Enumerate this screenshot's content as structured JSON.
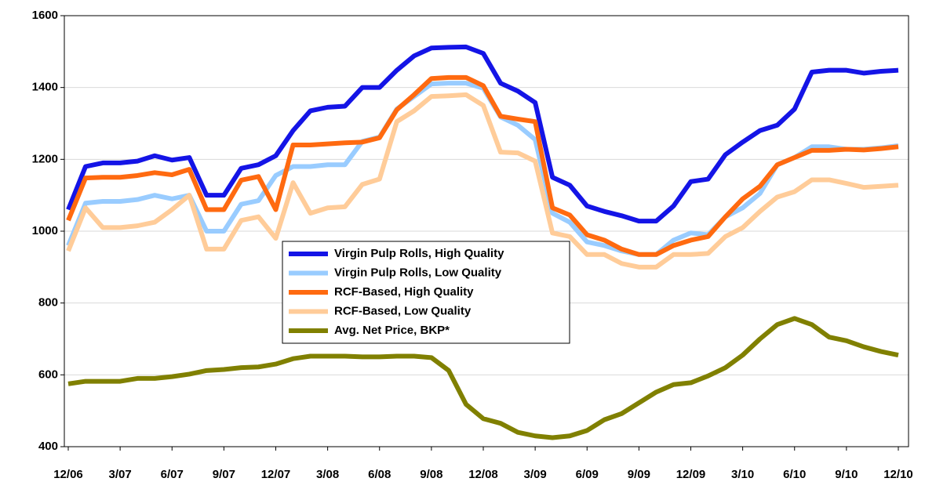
{
  "chart_data": {
    "type": "line",
    "categories": [
      "12/06",
      null,
      null,
      "3/07",
      null,
      null,
      "6/07",
      null,
      null,
      "9/07",
      null,
      null,
      "12/07",
      null,
      null,
      "3/08",
      null,
      null,
      "6/08",
      null,
      null,
      "9/08",
      null,
      null,
      "12/08",
      null,
      null,
      "3/09",
      null,
      null,
      "6/09",
      null,
      null,
      "9/09",
      null,
      null,
      "12/09",
      null,
      null,
      "3/10",
      null,
      null,
      "6/10",
      null,
      null,
      "9/10",
      null,
      null,
      "12/10"
    ],
    "series": [
      {
        "name": "Virgin Pulp Rolls, High Quality",
        "color": "#1414e6",
        "values": [
          1060,
          1180,
          1190,
          1190,
          1195,
          1210,
          1198,
          1205,
          1100,
          1100,
          1175,
          1185,
          1210,
          1280,
          1335,
          1345,
          1348,
          1400,
          1400,
          1448,
          1488,
          1510,
          1512,
          1513,
          1495,
          1412,
          1390,
          1358,
          1150,
          1128,
          1070,
          1055,
          1043,
          1028,
          1028,
          1070,
          1138,
          1145,
          1213,
          1248,
          1280,
          1295,
          1340,
          1443,
          1448,
          1448,
          1440,
          1445,
          1448
        ]
      },
      {
        "name": "Virgin Pulp Rolls, Low Quality",
        "color": "#99ccff",
        "values": [
          960,
          1078,
          1083,
          1083,
          1088,
          1100,
          1090,
          1100,
          1000,
          1000,
          1075,
          1085,
          1155,
          1180,
          1180,
          1185,
          1185,
          1250,
          1262,
          1340,
          1375,
          1410,
          1412,
          1412,
          1398,
          1318,
          1295,
          1255,
          1050,
          1025,
          970,
          960,
          945,
          935,
          935,
          975,
          995,
          990,
          1040,
          1065,
          1105,
          1185,
          1205,
          1235,
          1235,
          1228,
          1228,
          1232,
          1238
        ]
      },
      {
        "name": "RCF-Based, High Quality",
        "color": "#ff6a10",
        "values": [
          1030,
          1148,
          1150,
          1150,
          1155,
          1163,
          1157,
          1172,
          1060,
          1060,
          1142,
          1152,
          1060,
          1240,
          1240,
          1243,
          1246,
          1248,
          1260,
          1338,
          1380,
          1425,
          1428,
          1428,
          1405,
          1320,
          1312,
          1305,
          1065,
          1045,
          990,
          975,
          950,
          935,
          935,
          960,
          975,
          985,
          1040,
          1090,
          1125,
          1185,
          1205,
          1225,
          1225,
          1228,
          1226,
          1230,
          1235
        ]
      },
      {
        "name": "RCF-Based, Low Quality",
        "color": "#ffcc99",
        "values": [
          945,
          1065,
          1010,
          1010,
          1015,
          1025,
          1060,
          1100,
          950,
          950,
          1030,
          1040,
          980,
          1135,
          1050,
          1065,
          1068,
          1130,
          1145,
          1305,
          1335,
          1375,
          1377,
          1380,
          1350,
          1220,
          1218,
          1195,
          995,
          985,
          935,
          935,
          910,
          900,
          900,
          935,
          935,
          938,
          985,
          1010,
          1055,
          1095,
          1110,
          1143,
          1143,
          1133,
          1122,
          1125,
          1128
        ]
      },
      {
        "name": "Avg. Net Price, BKP*",
        "color": "#808000",
        "values": [
          575,
          582,
          582,
          582,
          590,
          590,
          595,
          602,
          612,
          615,
          620,
          622,
          630,
          645,
          652,
          652,
          652,
          650,
          650,
          652,
          652,
          648,
          612,
          518,
          478,
          465,
          440,
          430,
          425,
          430,
          445,
          475,
          492,
          522,
          552,
          573,
          578,
          597,
          620,
          655,
          700,
          740,
          757,
          740,
          705,
          695,
          678,
          665,
          655
        ]
      }
    ],
    "ylim": [
      400,
      1600
    ],
    "yticks": [
      400,
      600,
      800,
      1000,
      1200,
      1400,
      1600
    ],
    "grid": true,
    "legend": "center"
  }
}
